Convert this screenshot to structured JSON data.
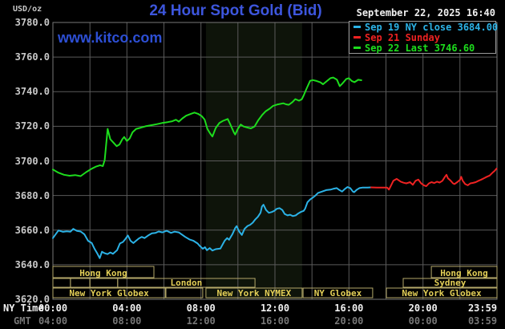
{
  "header": {
    "unit_label": "USD/oz",
    "title": "24 Hour Spot Gold (Bid)",
    "datetime": "September 22, 2025 16:40"
  },
  "watermark": "www.kitco.com",
  "legend": {
    "items": [
      {
        "label": "Sep 19 NY close 3684.00",
        "color_key": "cyan"
      },
      {
        "label": "Sep 21 Sunday",
        "color_key": "red"
      },
      {
        "label": "Sep 22 Last 3746.60",
        "color_key": "green"
      }
    ]
  },
  "colors": {
    "background": "#000000",
    "title_blue": "#3d56dd",
    "kitco_blue": "#2d4fd4",
    "cyan": "#2bb2e6",
    "red": "#ee2222",
    "green": "#1ddd1d",
    "grid": "#5a5a5a",
    "plot_border": "#787878",
    "label_gray": "#c8c8c8",
    "dim_gray": "#777777",
    "white": "#f0f0f0",
    "session_border": "#b5a96a",
    "session_text": "#e3cf57",
    "shade": "#0e140a"
  },
  "y_axis": {
    "ticks": [
      "3780.0",
      "3760.0",
      "3740.0",
      "3720.0",
      "3700.0",
      "3680.0",
      "3660.0",
      "3640.0",
      "3620.0"
    ]
  },
  "x_axis": {
    "ny_label": "NY Time",
    "gmt_label": "GMT",
    "ny_ticks": [
      {
        "label": "00:00",
        "h": 0
      },
      {
        "label": "04:00",
        "h": 4
      },
      {
        "label": "08:00",
        "h": 8
      },
      {
        "label": "12:00",
        "h": 12
      },
      {
        "label": "16:00",
        "h": 16
      },
      {
        "label": "20:00",
        "h": 20
      },
      {
        "label": "23:59",
        "h": 23.98
      }
    ],
    "gmt_ticks": [
      {
        "label": "04:00",
        "h": 0
      },
      {
        "label": "08:00",
        "h": 4
      },
      {
        "label": "12:00",
        "h": 8
      },
      {
        "label": "16:00",
        "h": 12
      },
      {
        "label": "20:00",
        "h": 16
      },
      {
        "label": "00:00",
        "h": 20
      },
      {
        "label": "03:59",
        "h": 23.98
      }
    ]
  },
  "chart_data": {
    "type": "line",
    "title": "24 Hour Spot Gold (Bid)",
    "ylabel": "USD/oz",
    "y_min": 3620,
    "y_max": 3780,
    "y_step": 20,
    "x_range_hours": [
      0,
      24
    ],
    "grid": "on",
    "legend_position": "top-right",
    "shaded_band": {
      "name": "New York NYMEX session",
      "start_h": 8.27,
      "end_h": 13.47
    },
    "sessions": [
      {
        "row": 1,
        "label": "Hong Kong",
        "start_h": 0,
        "end_h": 5.46
      },
      {
        "row": 1,
        "label": "Hong Kong",
        "start_h": 20.45,
        "end_h": 24
      },
      {
        "row": 2,
        "label": "",
        "start_h": 0,
        "end_h": 0.95
      },
      {
        "row": 2,
        "label": "",
        "start_h": 0.95,
        "end_h": 2.0
      },
      {
        "row": 2,
        "label": "",
        "start_h": 2.0,
        "end_h": 3.5
      },
      {
        "row": 2,
        "label": "London",
        "start_h": 3.5,
        "end_h": 10.92
      },
      {
        "row": 2,
        "label": "Sydney",
        "start_h": 18.93,
        "end_h": 24
      },
      {
        "row": 3,
        "label": "New York Globex",
        "start_h": 0,
        "end_h": 6.07
      },
      {
        "row": 3,
        "label": "",
        "start_h": 6.11,
        "end_h": 8.1
      },
      {
        "row": 3,
        "label": "New York NYMEX",
        "start_h": 8.27,
        "end_h": 13.47
      },
      {
        "row": 3,
        "label": "NY Globex",
        "start_h": 13.52,
        "end_h": 17.28
      },
      {
        "row": 3,
        "label": "New York Globex",
        "start_h": 18.02,
        "end_h": 24
      }
    ],
    "series": [
      {
        "name": "Sep 19 NY close 3684.00",
        "color_key": "cyan",
        "points": [
          [
            0,
            3655.4
          ],
          [
            0.3,
            3659.8
          ],
          [
            0.55,
            3659
          ],
          [
            0.75,
            3659.3
          ],
          [
            0.95,
            3659.1
          ],
          [
            1.1,
            3660.7
          ],
          [
            1.3,
            3659.5
          ],
          [
            1.5,
            3659.2
          ],
          [
            1.7,
            3657.6
          ],
          [
            1.9,
            3653.8
          ],
          [
            2.1,
            3652.5
          ],
          [
            2.25,
            3649.2
          ],
          [
            2.4,
            3646.5
          ],
          [
            2.53,
            3643.8
          ],
          [
            2.65,
            3647.5
          ],
          [
            2.8,
            3646.6
          ],
          [
            2.95,
            3646.1
          ],
          [
            3.1,
            3647.1
          ],
          [
            3.25,
            3646.3
          ],
          [
            3.47,
            3648.4
          ],
          [
            3.62,
            3652.3
          ],
          [
            3.78,
            3653.1
          ],
          [
            3.9,
            3654.6
          ],
          [
            4.05,
            3656.9
          ],
          [
            4.2,
            3653.8
          ],
          [
            4.35,
            3652.5
          ],
          [
            4.5,
            3653.9
          ],
          [
            4.65,
            3655.2
          ],
          [
            4.8,
            3656.1
          ],
          [
            4.95,
            3655.4
          ],
          [
            5.15,
            3656.9
          ],
          [
            5.35,
            3658.1
          ],
          [
            5.55,
            3658.4
          ],
          [
            5.72,
            3659.2
          ],
          [
            5.92,
            3658.7
          ],
          [
            6.15,
            3659.6
          ],
          [
            6.38,
            3658.4
          ],
          [
            6.58,
            3659.1
          ],
          [
            6.8,
            3658.7
          ],
          [
            6.95,
            3657.6
          ],
          [
            7.15,
            3656.1
          ],
          [
            7.38,
            3654.6
          ],
          [
            7.6,
            3653.8
          ],
          [
            7.82,
            3652.3
          ],
          [
            7.95,
            3650.7
          ],
          [
            8.1,
            3649.2
          ],
          [
            8.22,
            3650.1
          ],
          [
            8.32,
            3648.4
          ],
          [
            8.48,
            3649.6
          ],
          [
            8.62,
            3648.2
          ],
          [
            8.8,
            3649
          ],
          [
            9.05,
            3649.3
          ],
          [
            9.28,
            3653.8
          ],
          [
            9.42,
            3655.4
          ],
          [
            9.52,
            3654.4
          ],
          [
            9.7,
            3657.6
          ],
          [
            9.85,
            3661.2
          ],
          [
            9.93,
            3662.3
          ],
          [
            10.07,
            3659.2
          ],
          [
            10.21,
            3657.2
          ],
          [
            10.36,
            3660.7
          ],
          [
            10.52,
            3662.4
          ],
          [
            10.66,
            3663.1
          ],
          [
            10.8,
            3664.3
          ],
          [
            10.94,
            3666.2
          ],
          [
            11.08,
            3667.7
          ],
          [
            11.22,
            3670
          ],
          [
            11.3,
            3673.6
          ],
          [
            11.38,
            3674.7
          ],
          [
            11.52,
            3671.6
          ],
          [
            11.67,
            3670
          ],
          [
            11.82,
            3670.4
          ],
          [
            11.96,
            3671.1
          ],
          [
            12.1,
            3672.3
          ],
          [
            12.25,
            3672.7
          ],
          [
            12.4,
            3671.6
          ],
          [
            12.53,
            3669.3
          ],
          [
            12.68,
            3668.5
          ],
          [
            12.82,
            3668.9
          ],
          [
            12.97,
            3668.1
          ],
          [
            13.12,
            3668.5
          ],
          [
            13.25,
            3669.6
          ],
          [
            13.4,
            3670.5
          ],
          [
            13.55,
            3671.1
          ],
          [
            13.63,
            3672.3
          ],
          [
            13.76,
            3676.1
          ],
          [
            13.9,
            3677.7
          ],
          [
            14.04,
            3678.7
          ],
          [
            14.19,
            3680
          ],
          [
            14.33,
            3681.5
          ],
          [
            14.55,
            3682.3
          ],
          [
            14.77,
            3683.1
          ],
          [
            15,
            3683.4
          ],
          [
            15.13,
            3683.8
          ],
          [
            15.34,
            3684.3
          ],
          [
            15.49,
            3683.1
          ],
          [
            15.63,
            3682.3
          ],
          [
            15.78,
            3683.8
          ],
          [
            15.92,
            3684.9
          ],
          [
            16.07,
            3684.3
          ],
          [
            16.21,
            3682.3
          ],
          [
            16.28,
            3681.9
          ],
          [
            16.43,
            3683.4
          ],
          [
            16.57,
            3684.3
          ],
          [
            16.75,
            3684.6
          ],
          [
            17,
            3684.6
          ],
          [
            17.2,
            3684.7
          ]
        ]
      },
      {
        "name": "Sep 21 Sunday",
        "color_key": "red",
        "points": [
          [
            17.2,
            3684.7
          ],
          [
            17.5,
            3684.6
          ],
          [
            17.8,
            3684.6
          ],
          [
            18.06,
            3684.6
          ],
          [
            18.16,
            3683.4
          ],
          [
            18.26,
            3685.5
          ],
          [
            18.4,
            3688.5
          ],
          [
            18.58,
            3689.6
          ],
          [
            18.8,
            3688
          ],
          [
            18.95,
            3687.4
          ],
          [
            19.1,
            3687
          ],
          [
            19.3,
            3687.7
          ],
          [
            19.45,
            3686.2
          ],
          [
            19.6,
            3688.5
          ],
          [
            19.75,
            3689.2
          ],
          [
            19.9,
            3687
          ],
          [
            20.05,
            3685.9
          ],
          [
            20.18,
            3685.4
          ],
          [
            20.32,
            3687
          ],
          [
            20.46,
            3687.7
          ],
          [
            20.61,
            3687.2
          ],
          [
            20.76,
            3688
          ],
          [
            20.9,
            3687.5
          ],
          [
            21.05,
            3688.5
          ],
          [
            21.19,
            3690.8
          ],
          [
            21.27,
            3692
          ],
          [
            21.35,
            3690
          ],
          [
            21.5,
            3688.5
          ],
          [
            21.62,
            3687
          ],
          [
            21.7,
            3686.6
          ],
          [
            21.85,
            3687.7
          ],
          [
            22,
            3689
          ],
          [
            22.07,
            3690.8
          ],
          [
            22.15,
            3688.5
          ],
          [
            22.28,
            3686.6
          ],
          [
            22.42,
            3685.9
          ],
          [
            22.56,
            3687
          ],
          [
            22.71,
            3687.3
          ],
          [
            22.85,
            3687.7
          ],
          [
            23,
            3688.5
          ],
          [
            23.15,
            3689.2
          ],
          [
            23.3,
            3690
          ],
          [
            23.45,
            3690.8
          ],
          [
            23.6,
            3691.5
          ],
          [
            23.75,
            3693.1
          ],
          [
            23.87,
            3694.2
          ],
          [
            23.98,
            3695.6
          ]
        ]
      },
      {
        "name": "Sep 22 Last 3746.60",
        "color_key": "green",
        "points": [
          [
            0,
            3695
          ],
          [
            0.3,
            3693.2
          ],
          [
            0.6,
            3692
          ],
          [
            0.9,
            3691.4
          ],
          [
            1.2,
            3691.8
          ],
          [
            1.5,
            3691.2
          ],
          [
            1.8,
            3693.5
          ],
          [
            2.1,
            3695.5
          ],
          [
            2.35,
            3696.8
          ],
          [
            2.55,
            3697.5
          ],
          [
            2.7,
            3697
          ],
          [
            2.8,
            3700.5
          ],
          [
            2.96,
            3718.5
          ],
          [
            3.1,
            3712.5
          ],
          [
            3.25,
            3710.8
          ],
          [
            3.45,
            3708.5
          ],
          [
            3.6,
            3709.5
          ],
          [
            3.75,
            3712.5
          ],
          [
            3.85,
            3713.8
          ],
          [
            4,
            3711.5
          ],
          [
            4.15,
            3713
          ],
          [
            4.3,
            3716.5
          ],
          [
            4.5,
            3718.5
          ],
          [
            4.75,
            3719.2
          ],
          [
            5,
            3720
          ],
          [
            5.3,
            3720.6
          ],
          [
            5.6,
            3721.2
          ],
          [
            5.9,
            3721.9
          ],
          [
            6.2,
            3722.4
          ],
          [
            6.45,
            3722.9
          ],
          [
            6.65,
            3723.8
          ],
          [
            6.8,
            3722.7
          ],
          [
            7,
            3724.6
          ],
          [
            7.2,
            3726.1
          ],
          [
            7.45,
            3727.2
          ],
          [
            7.65,
            3727.9
          ],
          [
            7.85,
            3727.2
          ],
          [
            8.05,
            3725.8
          ],
          [
            8.2,
            3723.9
          ],
          [
            8.35,
            3718.5
          ],
          [
            8.5,
            3715.8
          ],
          [
            8.62,
            3714.1
          ],
          [
            8.8,
            3719
          ],
          [
            9,
            3722
          ],
          [
            9.2,
            3723.2
          ],
          [
            9.45,
            3724.2
          ],
          [
            9.6,
            3720.8
          ],
          [
            9.78,
            3716.4
          ],
          [
            9.85,
            3715.2
          ],
          [
            10,
            3718.6
          ],
          [
            10.15,
            3721
          ],
          [
            10.3,
            3719.9
          ],
          [
            10.5,
            3719.3
          ],
          [
            10.7,
            3718.8
          ],
          [
            10.9,
            3719.9
          ],
          [
            11.1,
            3723.5
          ],
          [
            11.3,
            3726.4
          ],
          [
            11.5,
            3728.7
          ],
          [
            11.72,
            3730.2
          ],
          [
            11.9,
            3731.8
          ],
          [
            12.1,
            3732.5
          ],
          [
            12.45,
            3733.3
          ],
          [
            12.6,
            3732.7
          ],
          [
            12.75,
            3732.4
          ],
          [
            12.95,
            3734
          ],
          [
            13.1,
            3735.7
          ],
          [
            13.3,
            3734.8
          ],
          [
            13.45,
            3735.6
          ],
          [
            13.55,
            3737.8
          ],
          [
            13.7,
            3741.5
          ],
          [
            13.9,
            3746.3
          ],
          [
            14.05,
            3746.7
          ],
          [
            14.25,
            3746.2
          ],
          [
            14.45,
            3745.4
          ],
          [
            14.6,
            3744.3
          ],
          [
            14.78,
            3745.9
          ],
          [
            15,
            3747.8
          ],
          [
            15.15,
            3748.2
          ],
          [
            15.35,
            3747
          ],
          [
            15.5,
            3743.2
          ],
          [
            15.65,
            3744.8
          ],
          [
            15.85,
            3747.3
          ],
          [
            16,
            3747.8
          ],
          [
            16.15,
            3746.2
          ],
          [
            16.3,
            3745.5
          ],
          [
            16.5,
            3746.9
          ],
          [
            16.67,
            3746.6
          ]
        ]
      }
    ]
  }
}
